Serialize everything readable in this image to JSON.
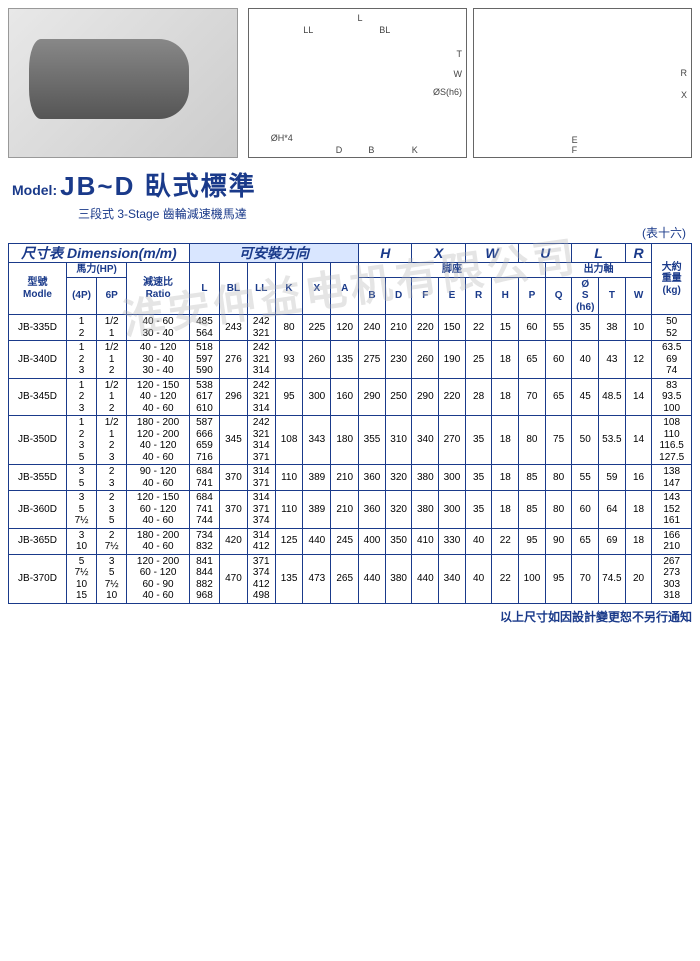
{
  "watermark": "淮安仲益电机有限公司",
  "model": {
    "label": "Model:",
    "name": "JB~D 臥式標準",
    "sub": "三段式 3-Stage 齒輪減速機馬達"
  },
  "table_note_right": "(表十六)",
  "footer_note": "以上尺寸如因設計變更恕不另行通知",
  "diagram_labels": {
    "d1": [
      "L",
      "LL",
      "BL",
      "ØH*4",
      "D",
      "B",
      "K",
      "T",
      "W",
      "ØS(h6)"
    ],
    "d2": [
      "R",
      "X",
      "E",
      "F"
    ]
  },
  "headers": {
    "dim_title": "尺寸表 Dimension(m/m)",
    "install_dir": "可安裝方向",
    "H": "H",
    "X": "X",
    "W": "W",
    "U": "U",
    "L": "L",
    "R": "R",
    "model": "型號\nModle",
    "hp": "馬力(HP)",
    "hp4p": "(4P)",
    "hp6p": "6P",
    "ratio": "減速比\nRatio",
    "Lcol": "L",
    "BL": "BL",
    "LL": "LL",
    "K": "K",
    "Xcol": "X",
    "A": "A",
    "foot": "脚座",
    "shaft": "出力軸",
    "B": "B",
    "D": "D",
    "F": "F",
    "E": "E",
    "Rcol": "R",
    "Hcol": "H",
    "P": "P",
    "Q": "Q",
    "S": "Ø\nS\n(h6)",
    "T": "T",
    "Wcol": "W",
    "weight": "大約\n重量\n(kg)"
  },
  "rows": [
    {
      "model": "JB-335D",
      "hp4": "1\n2",
      "hp6": "1/2\n1",
      "ratio": "40 - 60\n30 - 40",
      "L": "485\n564",
      "BL": "243",
      "LL": "242\n321",
      "K": "80",
      "X": "225",
      "A": "120",
      "B": "240",
      "D": "210",
      "F": "220",
      "E": "150",
      "R": "22",
      "H": "15",
      "P": "60",
      "Q": "55",
      "S": "35",
      "T": "38",
      "W": "10",
      "wt": "50\n52"
    },
    {
      "model": "JB-340D",
      "hp4": "1\n2\n3",
      "hp6": "1/2\n1\n2",
      "ratio": "40 - 120\n30 - 40\n30 - 40",
      "L": "518\n597\n590",
      "BL": "276",
      "LL": "242\n321\n314",
      "K": "93",
      "X": "260",
      "A": "135",
      "B": "275",
      "D": "230",
      "F": "260",
      "E": "190",
      "R": "25",
      "H": "18",
      "P": "65",
      "Q": "60",
      "S": "40",
      "T": "43",
      "W": "12",
      "wt": "63.5\n69\n74"
    },
    {
      "model": "JB-345D",
      "hp4": "1\n2\n3",
      "hp6": "1/2\n1\n2",
      "ratio": "120 - 150\n40 - 120\n40 - 60",
      "L": "538\n617\n610",
      "BL": "296",
      "LL": "242\n321\n314",
      "K": "95",
      "X": "300",
      "A": "160",
      "B": "290",
      "D": "250",
      "F": "290",
      "E": "220",
      "R": "28",
      "H": "18",
      "P": "70",
      "Q": "65",
      "S": "45",
      "T": "48.5",
      "W": "14",
      "wt": "83\n93.5\n100"
    },
    {
      "model": "JB-350D",
      "hp4": "1\n2\n3\n5",
      "hp6": "1/2\n1\n2\n3",
      "ratio": "180 - 200\n120 - 200\n40 - 120\n40 - 60",
      "L": "587\n666\n659\n716",
      "BL": "345",
      "LL": "242\n321\n314\n371",
      "K": "108",
      "X": "343",
      "A": "180",
      "B": "355",
      "D": "310",
      "F": "340",
      "E": "270",
      "R": "35",
      "H": "18",
      "P": "80",
      "Q": "75",
      "S": "50",
      "T": "53.5",
      "W": "14",
      "wt": "108\n110\n116.5\n127.5"
    },
    {
      "model": "JB-355D",
      "hp4": "3\n5",
      "hp6": "2\n3",
      "ratio": "90 - 120\n40 - 60",
      "L": "684\n741",
      "BL": "370",
      "LL": "314\n371",
      "K": "110",
      "X": "389",
      "A": "210",
      "B": "360",
      "D": "320",
      "F": "380",
      "E": "300",
      "R": "35",
      "H": "18",
      "P": "85",
      "Q": "80",
      "S": "55",
      "T": "59",
      "W": "16",
      "wt": "138\n147"
    },
    {
      "model": "JB-360D",
      "hp4": "3\n5\n7½",
      "hp6": "2\n3\n5",
      "ratio": "120 - 150\n60 - 120\n40 - 60",
      "L": "684\n741\n744",
      "BL": "370",
      "LL": "314\n371\n374",
      "K": "110",
      "X": "389",
      "A": "210",
      "B": "360",
      "D": "320",
      "F": "380",
      "E": "300",
      "R": "35",
      "H": "18",
      "P": "85",
      "Q": "80",
      "S": "60",
      "T": "64",
      "W": "18",
      "wt": "143\n152\n161"
    },
    {
      "model": "JB-365D",
      "hp4": "3\n10",
      "hp6": "2\n7½",
      "ratio": "180 - 200\n40 - 60",
      "L": "734\n832",
      "BL": "420",
      "LL": "314\n412",
      "K": "125",
      "X": "440",
      "A": "245",
      "B": "400",
      "D": "350",
      "F": "410",
      "E": "330",
      "R": "40",
      "H": "22",
      "P": "95",
      "Q": "90",
      "S": "65",
      "T": "69",
      "W": "18",
      "wt": "166\n210"
    },
    {
      "model": "JB-370D",
      "hp4": "5\n7½\n10\n15",
      "hp6": "3\n5\n7½\n10",
      "ratio": "120 - 200\n60 - 120\n60 - 90\n40 - 60",
      "L": "841\n844\n882\n968",
      "BL": "470",
      "LL": "371\n374\n412\n498",
      "K": "135",
      "X": "473",
      "A": "265",
      "B": "440",
      "D": "380",
      "F": "440",
      "E": "340",
      "R": "40",
      "H": "22",
      "P": "100",
      "Q": "95",
      "S": "70",
      "T": "74.5",
      "W": "20",
      "wt": "267\n273\n303\n318"
    }
  ]
}
